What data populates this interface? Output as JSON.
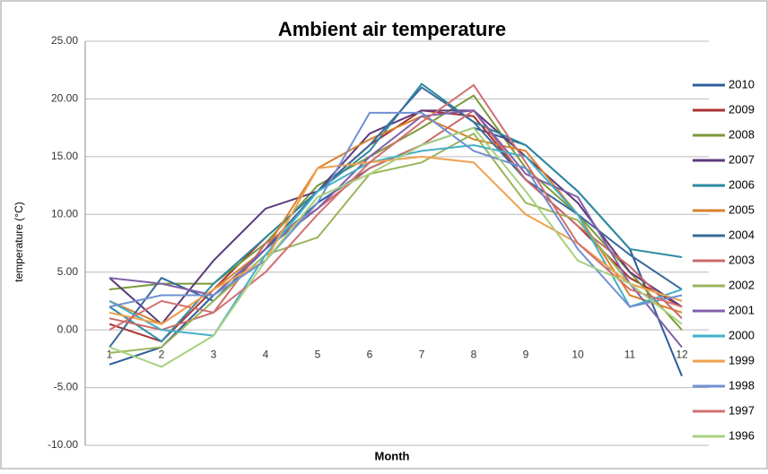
{
  "chart_data": {
    "type": "line",
    "title": "Ambient air temperature",
    "xlabel": "Month",
    "ylabel": "temperature (°C)",
    "categories": [
      "1",
      "2",
      "3",
      "4",
      "5",
      "6",
      "7",
      "8",
      "9",
      "10",
      "11",
      "12"
    ],
    "ylim": [
      -10,
      25
    ],
    "yticks": [
      {
        "value": -10,
        "label": "-10.00"
      },
      {
        "value": -5,
        "label": "-5.00"
      },
      {
        "value": 0,
        "label": "0.00"
      },
      {
        "value": 5,
        "label": "5.00"
      },
      {
        "value": 10,
        "label": "10.00"
      },
      {
        "value": 15,
        "label": "15.00"
      },
      {
        "value": 20,
        "label": "20.00"
      },
      {
        "value": 25,
        "label": "25.00"
      }
    ],
    "grid": true,
    "legend": "right",
    "series": [
      {
        "name": "2010",
        "color": "#2e5d9a",
        "values": [
          -3,
          -1.5,
          3,
          7,
          11,
          14,
          16,
          17.5,
          16,
          12,
          7,
          -4
        ]
      },
      {
        "name": "2009",
        "color": "#a83232",
        "values": [
          0.5,
          -1,
          3.5,
          8,
          12,
          16,
          19,
          18.5,
          13,
          9,
          4.5,
          2
        ]
      },
      {
        "name": "2008",
        "color": "#7a9a3a",
        "values": [
          3.5,
          4,
          4,
          7.5,
          12.5,
          15,
          17.5,
          20.3,
          14,
          10,
          5,
          0
        ]
      },
      {
        "name": "2007",
        "color": "#5c3a7c",
        "values": [
          4.5,
          0.5,
          6,
          10.5,
          12,
          17,
          19,
          19,
          15,
          11,
          5,
          2
        ]
      },
      {
        "name": "2006",
        "color": "#2e8aa0",
        "values": [
          2,
          -1,
          4,
          8,
          12,
          15.5,
          21.3,
          18,
          16,
          12,
          7,
          6.3
        ]
      },
      {
        "name": "2005",
        "color": "#d9822b",
        "values": [
          2.5,
          0.5,
          3.5,
          7,
          14,
          16.5,
          18.5,
          16.5,
          15.5,
          10,
          3,
          1.5
        ]
      },
      {
        "name": "2004",
        "color": "#3a6a9a",
        "values": [
          -1.5,
          4.5,
          2.5,
          7,
          12,
          16,
          21,
          18,
          13,
          10,
          6.5,
          3.5
        ]
      },
      {
        "name": "2003",
        "color": "#c96a6a",
        "values": [
          1,
          0,
          1.5,
          7.5,
          10.5,
          14,
          16,
          19,
          13,
          9,
          5.5,
          1
        ]
      },
      {
        "name": "2002",
        "color": "#9ab55a",
        "values": [
          -2,
          -1.5,
          2.5,
          6.5,
          8,
          13.5,
          14.5,
          17,
          11,
          9.5,
          4,
          2.5
        ]
      },
      {
        "name": "2001",
        "color": "#8060a8",
        "values": [
          4.5,
          4,
          3,
          7,
          10.5,
          15,
          18.5,
          19,
          13.5,
          11.5,
          4,
          -1.5
        ]
      },
      {
        "name": "2000",
        "color": "#40b0c8",
        "values": [
          2.5,
          0,
          -0.5,
          6.5,
          12,
          14.5,
          15.5,
          16,
          15,
          10,
          2,
          3.5
        ]
      },
      {
        "name": "1999",
        "color": "#f0a050",
        "values": [
          1.5,
          0.5,
          3.5,
          6,
          14,
          14.5,
          15,
          14.5,
          10,
          7.5,
          4,
          2.5
        ]
      },
      {
        "name": "1998",
        "color": "#7090d0",
        "values": [
          2,
          3,
          3,
          6,
          11,
          18.8,
          18.8,
          15.5,
          14,
          7,
          2,
          3
        ]
      },
      {
        "name": "1997",
        "color": "#d07070",
        "values": [
          0,
          2.5,
          1.5,
          5,
          10,
          14.5,
          18,
          21.2,
          14.5,
          7.5,
          3.5,
          2
        ]
      },
      {
        "name": "1996",
        "color": "#a8d080",
        "values": [
          -1.5,
          -3.2,
          -0.5,
          6,
          11.5,
          13.5,
          16,
          17.5,
          12,
          6,
          4,
          0.5
        ]
      }
    ]
  }
}
